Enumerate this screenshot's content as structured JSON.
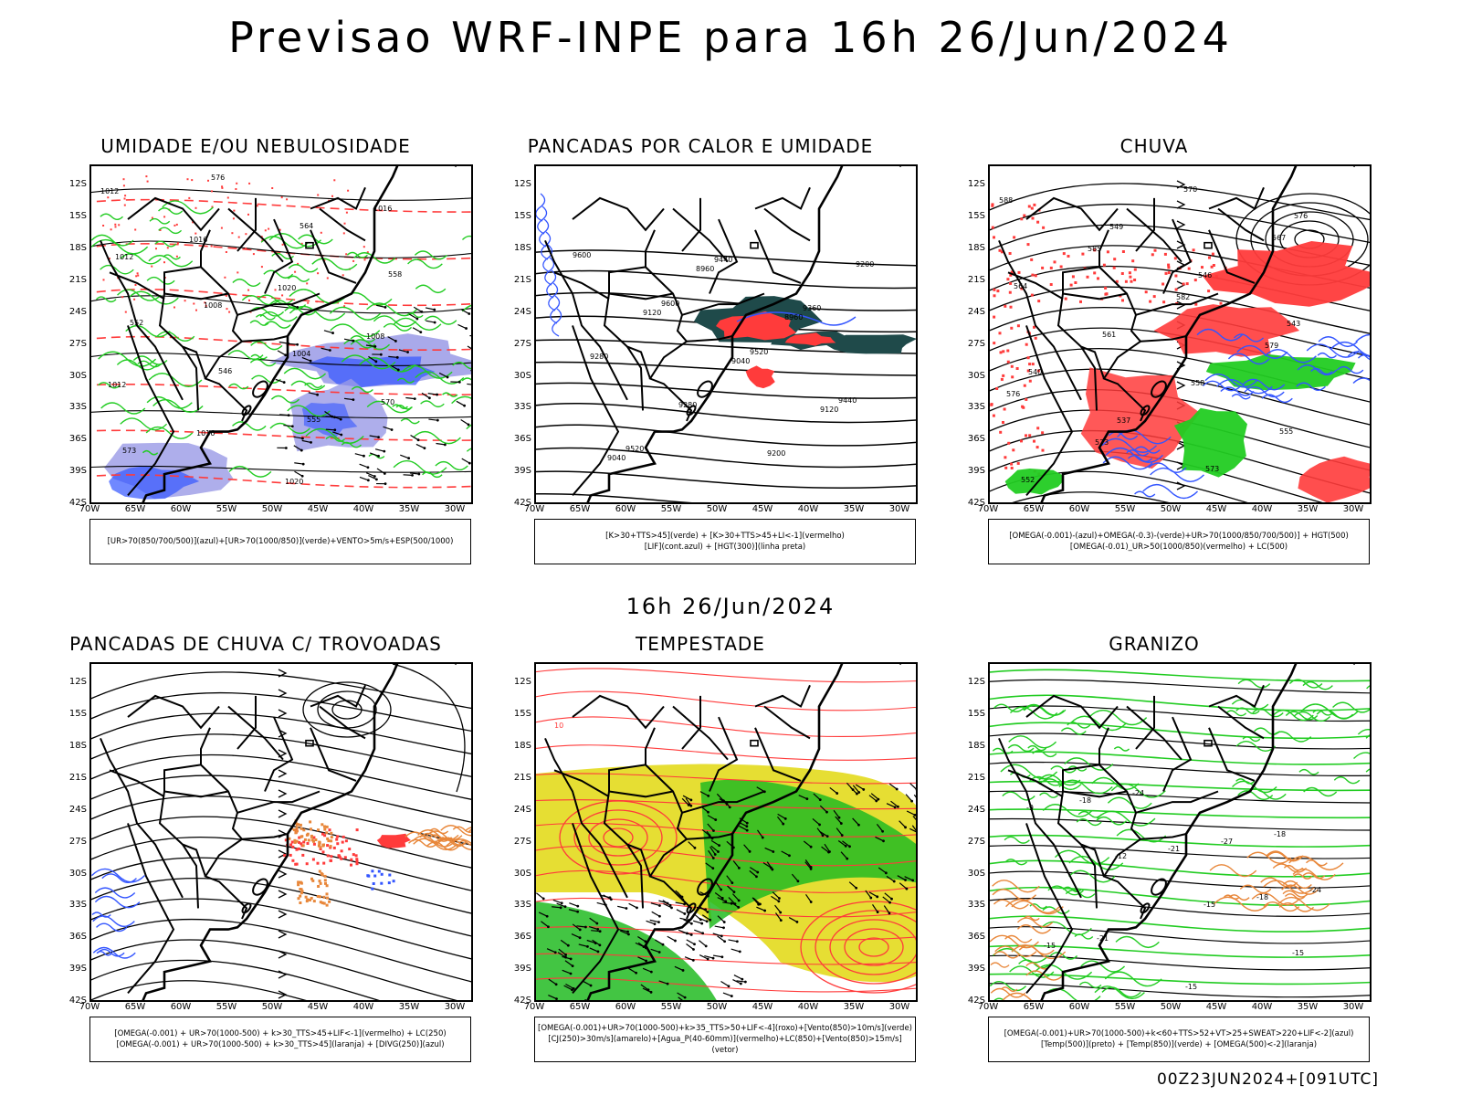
{
  "header": {
    "title": "Previsao WRF-INPE  para 16h 26/Jun/2024",
    "subtitle": "16h 26/Jun/2024",
    "footer": "00Z23JUN2024+[091UTC]"
  },
  "axes": {
    "lat_labels": [
      "12S",
      "15S",
      "18S",
      "21S",
      "24S",
      "27S",
      "30S",
      "33S",
      "36S",
      "39S",
      "42S"
    ],
    "lon_labels": [
      "70W",
      "65W",
      "60W",
      "55W",
      "50W",
      "45W",
      "40W",
      "35W",
      "30W"
    ]
  },
  "colors": {
    "contour_black": "#000000",
    "red": "#ff3b3b",
    "green": "#22cc22",
    "blue": "#3355ff",
    "lavender": "#9a9ae6",
    "orange": "#e8873a",
    "yellow": "#e6de33",
    "dark_teal": "#1f4a4a"
  },
  "panels": [
    {
      "title": "UMIDADE E/OU NEBULOSIDADE",
      "legend": [
        "[UR>70(850/700/500)](azul)+[UR>70(1000/850)](verde)+VENTO>5m/s+ESP(500/1000)"
      ],
      "labels": [
        "1012",
        "1016",
        "1020",
        "1008",
        "1012",
        "1016",
        "1020",
        "1016",
        "1012",
        "1008",
        "1004",
        "570",
        "573",
        "576",
        "564",
        "558",
        "552",
        "546",
        "555"
      ]
    },
    {
      "title": "PANCADAS POR CALOR E UMIDADE",
      "legend": [
        "[K>30+TTS>45](verde) + [K>30+TTS>45+LI<-1](vermelho)",
        "[LIF](cont.azul) + [HGT(300)](linha preta)"
      ],
      "labels": [
        "9600",
        "9600",
        "9520",
        "9440",
        "9520",
        "9440",
        "9360",
        "9280",
        "9280",
        "9200",
        "9200",
        "9120",
        "9040",
        "9120",
        "9040",
        "8960",
        "8960"
      ]
    },
    {
      "title": "CHUVA",
      "legend": [
        "[OMEGA(-0.001)-(azul)+OMEGA(-0.3)-(verde)+UR>70(1000/850/700/500)] + HGT(500)",
        "[OMEGA(-0.01)_UR>50(1000/850)(vermelho) + LC(500)"
      ],
      "labels": [
        "588",
        "585",
        "582",
        "579",
        "576",
        "573",
        "570",
        "567",
        "564",
        "561",
        "558",
        "555",
        "552",
        "549",
        "546",
        "543",
        "540",
        "537",
        "573",
        "576"
      ]
    },
    {
      "title": "PANCADAS DE CHUVA C/ TROVOADAS",
      "legend": [
        "[OMEGA(-0.001) + UR>70(1000-500) + k>30_TTS>45+LIF<-1](vermelho) + LC(250)",
        "[OMEGA(-0.001) + UR>70(1000-500) + k>30_TTS>45](laranja) + [DIVG(250)](azul)"
      ],
      "labels": []
    },
    {
      "title": "TEMPESTADE",
      "legend": [
        "[OMEGA(-0.001)+UR>70(1000-500)+k>35_TTS>50+LIF<-4](roxo)+[Vento(850)>10m/s](verde)",
        "[CJ(250)>30m/s](amarelo)+[Agua_P(40-60mm)](vermelho)+LC(850)+[Vento(850)>15m/s](vetor)"
      ],
      "labels": [
        "10"
      ]
    },
    {
      "title": "GRANIZO",
      "legend": [
        "[OMEGA(-0.001)+UR>70(1000-500)+k<60+TTS>52+VT>25+SWEAT>220+LIF<-2](azul)",
        "[Temp(500)](preto) + [Temp(850)](verde) + [OMEGA(500)<-2](laranja)"
      ],
      "labels": [
        "-9",
        "-12",
        "-15",
        "-15",
        "-18",
        "-21",
        "-18",
        "-15",
        "-24",
        "-27",
        "-24",
        "-21",
        "-15",
        "-18"
      ]
    }
  ]
}
